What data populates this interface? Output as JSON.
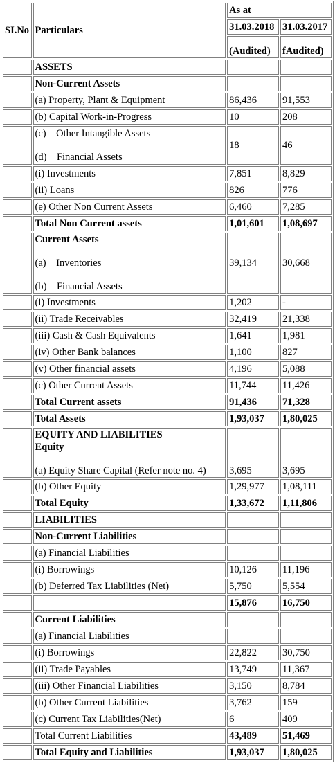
{
  "header": {
    "sl_no": "SI.No",
    "particulars": "Particulars",
    "as_at": "As at",
    "date_2018": "31.03.2018",
    "date_2017": "31.03.2017",
    "audited_2018": "(Audited)",
    "audited_2017": "fAudited)"
  },
  "assets": {
    "heading": "ASSETS",
    "non_current_heading": "Non-Current Assets",
    "ppe": {
      "label": "(a) Property, Plant & Equipment",
      "v2018": "86,436",
      "v2017": "91,553"
    },
    "cwip": {
      "label": "(b) Capital Work-in-Progress",
      "v2018": "10",
      "v2017": "208"
    },
    "intangible": {
      "label_c": "(c)",
      "label_c_text": "Other Intangible Assets",
      "label_d": "(d)",
      "label_d_text": "Financial Assets",
      "v2018": "18",
      "v2017": "46"
    },
    "nc_investments": {
      "label": "(i) Investments",
      "v2018": "7,851",
      "v2017": "8,829"
    },
    "nc_loans": {
      "label": "(ii) Loans",
      "v2018": "826",
      "v2017": "776"
    },
    "other_nc": {
      "label": "(e) Other Non Current Assets",
      "v2018": "6,460",
      "v2017": "7,285"
    },
    "total_nc": {
      "label": "Total Non Current assets",
      "v2018": "1,01,601",
      "v2017": "1,08,697"
    },
    "current_heading": "Current Assets",
    "inventories": {
      "label_a": "(a)",
      "label_a_text": "Inventories",
      "label_b": "(b)",
      "label_b_text": "Financial Assets",
      "v2018": "39,134",
      "v2017": "30,668"
    },
    "c_investments": {
      "label": "(i) Investments",
      "v2018": "1,202",
      "v2017": "-"
    },
    "trade_receivables": {
      "label": "(ii) Trade Receivables",
      "v2018": "32,419",
      "v2017": "21,338"
    },
    "cash": {
      "label": "(iii) Cash & Cash Equivalents",
      "v2018": "1,641",
      "v2017": "1,981"
    },
    "bank": {
      "label": "(iv) Other Bank balances",
      "v2018": "1,100",
      "v2017": "827"
    },
    "other_fin": {
      "label": "(v) Other financial assets",
      "v2018": "4,196",
      "v2017": "5,088"
    },
    "other_current": {
      "label": "(c) Other Current Assets",
      "v2018": "11,744",
      "v2017": "11,426"
    },
    "total_current": {
      "label": "Total Current assets",
      "v2018": "91,436",
      "v2017": "71,328"
    },
    "total_assets": {
      "label": "Total Assets",
      "v2018": "1,93,037",
      "v2017": "1,80,025"
    }
  },
  "equity": {
    "heading": "EQUITY AND LIABILITIES",
    "sub_heading": "Equity",
    "share_capital": {
      "label": "(a) Equity Share Capital (Refer note no. 4)",
      "v2018": "3,695",
      "v2017": "3,695"
    },
    "other_equity": {
      "label": "(b) Other Equity",
      "v2018": "1,29,977",
      "v2017": "1,08,111"
    },
    "total_equity": {
      "label": "Total Equity",
      "v2018": "1,33,672",
      "v2017": "1,11,806"
    }
  },
  "liabilities": {
    "heading": "LIABILITIES",
    "nc_heading": "Non-Current Liabilities",
    "nc_fin_liab": {
      "label": "(a) Financial Liabilities"
    },
    "nc_borrowings": {
      "label": "(i) Borrowings",
      "v2018": "10,126",
      "v2017": "11,196"
    },
    "deferred_tax": {
      "label": "(b) Deferred Tax Liabilities (Net)",
      "v2018": "5,750",
      "v2017": "5,554"
    },
    "nc_total": {
      "v2018": "15,876",
      "v2017": "16,750"
    },
    "c_heading": "Current Liabilities",
    "c_fin_liab": {
      "label": "(a) Financial Liabilities"
    },
    "c_borrowings": {
      "label": "(i) Borrowings",
      "v2018": "22,822",
      "v2017": "30,750"
    },
    "trade_payables": {
      "label": "(ii) Trade Payables",
      "v2018": "13,749",
      "v2017": "11,367"
    },
    "other_fin_liab": {
      "label": "(iii) Other Financial Liabilities",
      "v2018": "3,150",
      "v2017": "8,784"
    },
    "other_current_liab": {
      "label": "(b) Other Current Liabilities",
      "v2018": "3,762",
      "v2017": "159"
    },
    "current_tax": {
      "label": "(c) Current Tax Liabilities(Net)",
      "v2018": "6",
      "v2017": "409"
    },
    "total_current_liab": {
      "label": "Total Current Liabilities",
      "v2018": "43,489",
      "v2017": "51,469"
    },
    "total_eq_liab": {
      "label": "Total Equity and Liabilities",
      "v2018": "1,93,037",
      "v2017": "1,80,025"
    }
  }
}
